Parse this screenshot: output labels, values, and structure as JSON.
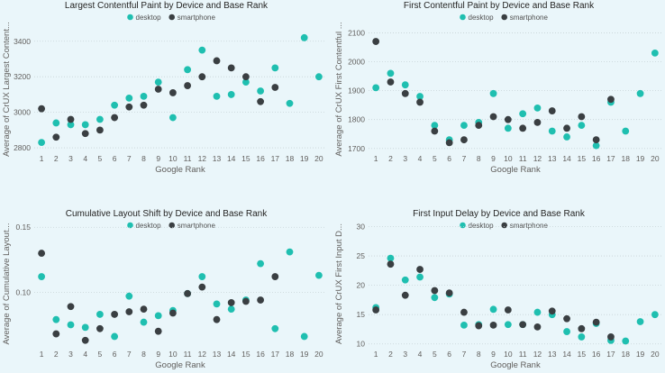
{
  "colors": {
    "desktop": "#1fbfb0",
    "smartphone": "#3a3f42",
    "background": "#eaf6fa"
  },
  "chart_data": [
    {
      "type": "scatter",
      "title": "Largest Contentful Paint by Device and Base Rank",
      "xlabel": "Google Rank",
      "ylabel": "Average of CrUX Largest Content...",
      "x": [
        1,
        2,
        3,
        4,
        5,
        6,
        7,
        8,
        9,
        10,
        11,
        12,
        13,
        14,
        15,
        16,
        17,
        18,
        19,
        20
      ],
      "ylim": [
        2780,
        3480
      ],
      "yticks": [
        2800,
        3000,
        3200,
        3400
      ],
      "grid": true,
      "legend_position": "top",
      "series": [
        {
          "name": "desktop",
          "values": [
            2830,
            2940,
            2930,
            2930,
            2960,
            3040,
            3080,
            3090,
            3170,
            2970,
            3240,
            3350,
            3090,
            3100,
            3170,
            3120,
            3250,
            3050,
            3420,
            3200
          ]
        },
        {
          "name": "smartphone",
          "values": [
            3020,
            2860,
            2960,
            2880,
            2900,
            2970,
            3030,
            3040,
            3130,
            3110,
            3150,
            3200,
            3290,
            3250,
            3200,
            3060,
            3140,
            null,
            null,
            null
          ]
        }
      ]
    },
    {
      "type": "scatter",
      "title": "First Contentful Paint by Device and Base Rank",
      "xlabel": "Google Rank",
      "ylabel": "Average of CrUX First Contentful ...",
      "x": [
        1,
        2,
        3,
        4,
        5,
        6,
        7,
        8,
        9,
        10,
        11,
        12,
        13,
        14,
        15,
        16,
        17,
        18,
        19,
        20
      ],
      "ylim": [
        1690,
        2120
      ],
      "yticks": [
        1700,
        1800,
        1900,
        2000,
        2100
      ],
      "grid": true,
      "legend_position": "top",
      "series": [
        {
          "name": "desktop",
          "values": [
            1910,
            1960,
            1920,
            1880,
            1780,
            1730,
            1780,
            1790,
            1890,
            1770,
            1820,
            1840,
            1760,
            1740,
            1780,
            1710,
            1860,
            1760,
            1890,
            2030
          ]
        },
        {
          "name": "smartphone",
          "values": [
            2070,
            1930,
            1890,
            1860,
            1760,
            1720,
            1730,
            1780,
            1810,
            1800,
            1770,
            1790,
            1830,
            1770,
            1810,
            1730,
            1870,
            null,
            null,
            null
          ]
        }
      ]
    },
    {
      "type": "scatter",
      "title": "Cumulative Layout Shift by Device and Base Rank",
      "xlabel": "Google Rank",
      "ylabel": "Average of Cumulative Layout...",
      "x": [
        1,
        2,
        3,
        4,
        5,
        6,
        7,
        8,
        9,
        10,
        11,
        12,
        13,
        14,
        15,
        16,
        17,
        18,
        19,
        20
      ],
      "ylim": [
        0.058,
        0.155
      ],
      "yticks": [
        0.1,
        0.15
      ],
      "yticklabels": [
        "0.10",
        "0.15"
      ],
      "grid": true,
      "legend_position": "top",
      "series": [
        {
          "name": "desktop",
          "values": [
            0.112,
            0.079,
            0.075,
            0.073,
            0.083,
            0.066,
            0.097,
            0.077,
            0.082,
            0.086,
            0.099,
            0.112,
            0.091,
            0.087,
            0.094,
            0.122,
            0.072,
            0.131,
            0.066,
            0.113
          ]
        },
        {
          "name": "smartphone",
          "values": [
            0.13,
            0.068,
            0.089,
            0.063,
            0.072,
            0.083,
            0.085,
            0.087,
            0.07,
            0.084,
            0.099,
            0.104,
            0.079,
            0.092,
            0.093,
            0.094,
            0.112,
            null,
            null,
            null
          ]
        }
      ]
    },
    {
      "type": "scatter",
      "title": "First Input Delay by Device and Base Rank",
      "xlabel": "Google Rank",
      "ylabel": "Average of CrUX First Input D...",
      "x": [
        1,
        2,
        3,
        4,
        5,
        6,
        7,
        8,
        9,
        10,
        11,
        12,
        13,
        14,
        15,
        16,
        17,
        18,
        19,
        20
      ],
      "ylim": [
        9.5,
        31
      ],
      "yticks": [
        10,
        15,
        20,
        25,
        30
      ],
      "grid": true,
      "legend_position": "top",
      "series": [
        {
          "name": "desktop",
          "values": [
            16.2,
            24.6,
            20.9,
            21.4,
            17.9,
            18.5,
            13.2,
            13.3,
            15.9,
            13.3,
            13.3,
            15.4,
            15.0,
            12.1,
            11.2,
            13.5,
            10.6,
            10.5,
            13.8,
            15.0
          ]
        },
        {
          "name": "smartphone",
          "values": [
            15.8,
            23.6,
            18.3,
            22.7,
            19.1,
            18.7,
            15.4,
            13.1,
            13.2,
            15.8,
            13.3,
            12.9,
            15.6,
            14.3,
            12.6,
            13.7,
            11.2,
            null,
            null,
            null
          ]
        }
      ]
    }
  ]
}
